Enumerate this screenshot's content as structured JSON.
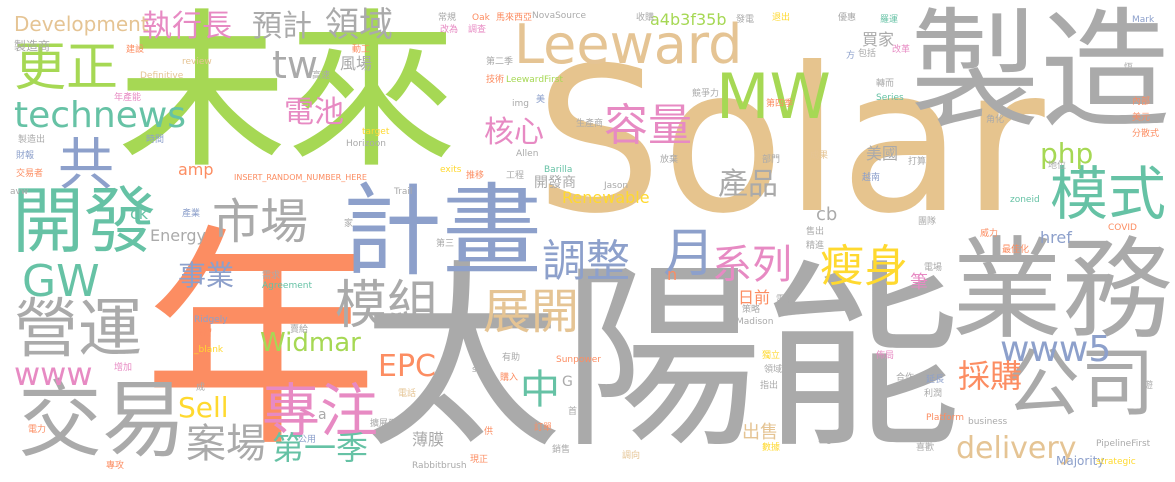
{
  "words": [
    {
      "text": "Solar",
      "color": "#e6c48e"
    },
    {
      "text": "太陽能",
      "color": "#aaaaaa"
    },
    {
      "text": "未來",
      "color": "#a6d854"
    },
    {
      "text": "年",
      "color": "#fc8d62"
    },
    {
      "text": "製造",
      "color": "#aaaaaa"
    },
    {
      "text": "業務",
      "color": "#aaaaaa"
    },
    {
      "text": "計畫",
      "color": "#8da0cb"
    },
    {
      "text": "Leeward",
      "color": "#e5c494"
    },
    {
      "text": "開發",
      "color": "#66c2a5"
    },
    {
      "text": "MW",
      "color": "#a6d854"
    },
    {
      "text": "交易",
      "color": "#aaaaaa"
    },
    {
      "text": "公司",
      "color": "#aaaaaa"
    },
    {
      "text": "專注",
      "color": "#e78ac3"
    },
    {
      "text": "市場",
      "color": "#aaaaaa"
    },
    {
      "text": "營運",
      "color": "#aaaaaa"
    },
    {
      "text": "模組",
      "color": "#aaaaaa"
    },
    {
      "text": "technews",
      "color": "#66c2a5"
    },
    {
      "text": "GW",
      "color": "#66c2a5"
    },
    {
      "text": "更正",
      "color": "#a6d854"
    },
    {
      "text": "共",
      "color": "#8da0cb"
    },
    {
      "text": "容量",
      "color": "#e78ac3"
    },
    {
      "text": "調整",
      "color": "#8da0cb"
    },
    {
      "text": "展開",
      "color": "#e5c494"
    },
    {
      "text": "模式",
      "color": "#66c2a5"
    },
    {
      "text": "www5",
      "color": "#8da0cb"
    },
    {
      "text": "瘦身",
      "color": "#ffd92f"
    },
    {
      "text": "系列",
      "color": "#e78ac3"
    },
    {
      "text": "月",
      "color": "#8da0cb"
    },
    {
      "text": "案場",
      "color": "#aaaaaa"
    },
    {
      "text": "第一季",
      "color": "#66c2a5"
    },
    {
      "text": "www",
      "color": "#e78ac3"
    },
    {
      "text": "tw",
      "color": "#aaaaaa"
    },
    {
      "text": "執行長",
      "color": "#e78ac3"
    },
    {
      "text": "預計",
      "color": "#aaaaaa"
    },
    {
      "text": "領域",
      "color": "#aaaaaa"
    },
    {
      "text": "Development",
      "color": "#e5c494"
    },
    {
      "text": "電池",
      "color": "#e78ac3"
    },
    {
      "text": "核心",
      "color": "#e78ac3"
    },
    {
      "text": "php",
      "color": "#a6d854"
    },
    {
      "text": "產品",
      "color": "#aaaaaa"
    },
    {
      "text": "事業",
      "color": "#8da0cb"
    },
    {
      "text": "Widmar",
      "color": "#a6d854"
    },
    {
      "text": "EPC",
      "color": "#fc8d62"
    },
    {
      "text": "Sell",
      "color": "#ffd92f"
    },
    {
      "text": "中",
      "color": "#66c2a5"
    },
    {
      "text": "採購",
      "color": "#fc8d62"
    },
    {
      "text": "delivery",
      "color": "#e5c494"
    },
    {
      "text": "a4b3f35b",
      "color": "#a6d854"
    },
    {
      "text": "Renewable",
      "color": "#ffd92f"
    },
    {
      "text": "Energy",
      "color": "#aaaaaa"
    },
    {
      "text": "開發商",
      "color": "#aaaaaa"
    },
    {
      "text": "美國",
      "color": "#aaaaaa"
    },
    {
      "text": "買家",
      "color": "#aaaaaa"
    },
    {
      "text": "風場",
      "color": "#aaaaaa"
    },
    {
      "text": "出售",
      "color": "#e5c494"
    },
    {
      "text": "薄膜",
      "color": "#aaaaaa"
    },
    {
      "text": "筆",
      "color": "#e78ac3"
    },
    {
      "text": "日前",
      "color": "#fc8d62"
    },
    {
      "text": "cb",
      "color": "#aaaaaa"
    },
    {
      "text": "href",
      "color": "#8da0cb"
    },
    {
      "text": "製造商",
      "color": "#aaaaaa"
    },
    {
      "text": "amp",
      "color": "#fc8d62"
    },
    {
      "text": "ck",
      "color": "#66c2a5"
    },
    {
      "text": "Majority",
      "color": "#8da0cb"
    },
    {
      "text": "a",
      "color": "#aaaaaa"
    },
    {
      "text": "n",
      "color": "#fc8d62"
    },
    {
      "text": "G",
      "color": "#aaaaaa"
    },
    {
      "text": "INSERT_RANDOM_NUMBER_HERE",
      "color": "#fc8d62"
    },
    {
      "text": "NovaSource",
      "color": "#aaaaaa"
    },
    {
      "text": "LeewardFirst",
      "color": "#a6d854"
    },
    {
      "text": "PipelineFirst",
      "color": "#aaaaaa"
    },
    {
      "text": "Rabbitbrush",
      "color": "#aaaaaa"
    },
    {
      "text": "Horizoon",
      "color": "#aaaaaa"
    },
    {
      "text": "Agreement",
      "color": "#66c2a5"
    },
    {
      "text": "Madison",
      "color": "#aaaaaa"
    },
    {
      "text": "Definitive",
      "color": "#e5c494"
    },
    {
      "text": "Sunpower",
      "color": "#fc8d62"
    },
    {
      "text": "Platform",
      "color": "#fc8d62"
    },
    {
      "text": "Ridgely",
      "color": "#8da0cb"
    },
    {
      "text": "_blank",
      "color": "#ffd92f"
    },
    {
      "text": "business",
      "color": "#aaaaaa"
    },
    {
      "text": "strategic",
      "color": "#ffd92f"
    },
    {
      "text": "Series",
      "color": "#66c2a5"
    },
    {
      "text": "zoneid",
      "color": "#66c2a5"
    },
    {
      "text": "COVID",
      "color": "#fc8d62"
    },
    {
      "text": "Mark",
      "color": "#8da0cb"
    },
    {
      "text": "Oak",
      "color": "#fc8d62"
    },
    {
      "text": "review",
      "color": "#e5c494"
    },
    {
      "text": "target",
      "color": "#ffd92f"
    },
    {
      "text": "img",
      "color": "#aaaaaa"
    },
    {
      "text": "Allen",
      "color": "#aaaaaa"
    },
    {
      "text": "Trail",
      "color": "#aaaaaa"
    },
    {
      "text": "exits",
      "color": "#ffd92f"
    },
    {
      "text": "Barilla",
      "color": "#66c2a5"
    },
    {
      "text": "Jason",
      "color": "#aaaaaa"
    },
    {
      "text": "Signs",
      "color": "#aaaaaa"
    },
    {
      "text": "src",
      "color": "#aaaaaa"
    },
    {
      "text": "avw",
      "color": "#aaaaaa"
    },
    {
      "text": "常規",
      "color": "#aaaaaa"
    },
    {
      "text": "馬來西亞",
      "color": "#fc8d62"
    },
    {
      "text": "收購",
      "color": "#aaaaaa"
    },
    {
      "text": "發電",
      "color": "#aaaaaa"
    },
    {
      "text": "退出",
      "color": "#ffd92f"
    },
    {
      "text": "優惠",
      "color": "#aaaaaa"
    },
    {
      "text": "羅運",
      "color": "#66c2a5"
    },
    {
      "text": "建設",
      "color": "#fc8d62"
    },
    {
      "text": "動工",
      "color": "#fc8d62"
    },
    {
      "text": "技術",
      "color": "#fc8d62"
    },
    {
      "text": "高速",
      "color": "#aaaaaa"
    },
    {
      "text": "年產能",
      "color": "#e78ac3"
    },
    {
      "text": "競爭力",
      "color": "#aaaaaa"
    },
    {
      "text": "轉而",
      "color": "#aaaaaa"
    },
    {
      "text": "製造出",
      "color": "#aaaaaa"
    },
    {
      "text": "時間",
      "color": "#8da0cb"
    },
    {
      "text": "生產商",
      "color": "#aaaaaa"
    },
    {
      "text": "第四季",
      "color": "#fc8d62"
    },
    {
      "text": "財報",
      "color": "#8da0cb"
    },
    {
      "text": "放棄",
      "color": "#aaaaaa"
    },
    {
      "text": "角化",
      "color": "#aaaaaa"
    },
    {
      "text": "成果",
      "color": "#e5c494"
    },
    {
      "text": "交易者",
      "color": "#fc8d62"
    },
    {
      "text": "推移",
      "color": "#fc8d62"
    },
    {
      "text": "工程",
      "color": "#aaaaaa"
    },
    {
      "text": "部門",
      "color": "#aaaaaa"
    },
    {
      "text": "越南",
      "color": "#8da0cb"
    },
    {
      "text": "打算",
      "color": "#aaaaaa"
    },
    {
      "text": "分散式",
      "color": "#fc8d62"
    },
    {
      "text": "產業",
      "color": "#8da0cb"
    },
    {
      "text": "需求",
      "color": "#aaaaaa"
    },
    {
      "text": "團隊",
      "color": "#aaaaaa"
    },
    {
      "text": "售出",
      "color": "#aaaaaa"
    },
    {
      "text": "精進",
      "color": "#aaaaaa"
    },
    {
      "text": "威力",
      "color": "#fc8d62"
    },
    {
      "text": "最佳化",
      "color": "#fc8d62"
    },
    {
      "text": "電場",
      "color": "#aaaaaa"
    },
    {
      "text": "第三",
      "color": "#aaaaaa"
    },
    {
      "text": "購入",
      "color": "#fc8d62"
    },
    {
      "text": "有助",
      "color": "#aaaaaa"
    },
    {
      "text": "佈局",
      "color": "#e78ac3"
    },
    {
      "text": "指出",
      "color": "#aaaaaa"
    },
    {
      "text": "延長",
      "color": "#8da0cb"
    },
    {
      "text": "合作",
      "color": "#aaaaaa"
    },
    {
      "text": "利潤",
      "color": "#aaaaaa"
    },
    {
      "text": "銷售",
      "color": "#aaaaaa"
    },
    {
      "text": "喜歡",
      "color": "#aaaaaa"
    },
    {
      "text": "調向",
      "color": "#e5c494"
    },
    {
      "text": "數據",
      "color": "#ffd92f"
    },
    {
      "text": "擴展到",
      "color": "#aaaaaa"
    },
    {
      "text": "保留",
      "color": "#fc8d62"
    },
    {
      "text": "賣給",
      "color": "#aaaaaa"
    },
    {
      "text": "電力",
      "color": "#fc8d62"
    },
    {
      "text": "公用",
      "color": "#8da0cb"
    },
    {
      "text": "專攻",
      "color": "#fc8d62"
    },
    {
      "text": "現正",
      "color": "#fc8d62"
    },
    {
      "text": "訂單",
      "color": "#fc8d62"
    },
    {
      "text": "獨立",
      "color": "#ffd92f"
    },
    {
      "text": "領域",
      "color": "#aaaaaa"
    },
    {
      "text": "策略",
      "color": "#aaaaaa"
    },
    {
      "text": "地位",
      "color": "#aaaaaa"
    },
    {
      "text": "美元",
      "color": "#fc8d62"
    },
    {
      "text": "內部",
      "color": "#fc8d62"
    },
    {
      "text": "包括",
      "color": "#aaaaaa"
    },
    {
      "text": "改革",
      "color": "#e78ac3"
    },
    {
      "text": "改為",
      "color": "#e78ac3"
    },
    {
      "text": "調查",
      "color": "#e78ac3"
    },
    {
      "text": "第二季",
      "color": "#aaaaaa"
    },
    {
      "text": "恆",
      "color": "#aaaaaa"
    },
    {
      "text": "方",
      "color": "#8da0cb"
    },
    {
      "text": "電網",
      "color": "#aaaaaa"
    },
    {
      "text": "成",
      "color": "#aaaaaa"
    },
    {
      "text": "增加",
      "color": "#e78ac3"
    },
    {
      "text": "首",
      "color": "#aaaaaa"
    },
    {
      "text": "家",
      "color": "#aaaaaa"
    },
    {
      "text": "供",
      "color": "#fc8d62"
    },
    {
      "text": "遊",
      "color": "#aaaaaa"
    },
    {
      "text": "美",
      "color": "#8da0cb"
    },
    {
      "text": "電話",
      "color": "#e5c494"
    }
  ]
}
